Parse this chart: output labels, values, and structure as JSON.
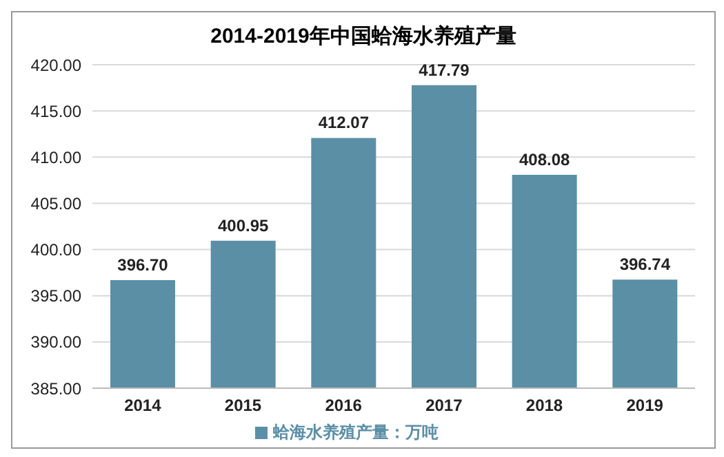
{
  "chart_data": {
    "type": "bar",
    "title": "2014-2019年中国蛤海水养殖产量",
    "categories": [
      "2014",
      "2015",
      "2016",
      "2017",
      "2018",
      "2019"
    ],
    "series": [
      {
        "name": "蛤海水养殖产量：万吨",
        "color": "#5b8fa6",
        "values": [
          396.7,
          400.95,
          412.07,
          417.79,
          408.08,
          396.74
        ],
        "value_labels": [
          "396.70",
          "400.95",
          "412.07",
          "417.79",
          "408.08",
          "396.74"
        ]
      }
    ],
    "ylim": [
      385,
      420
    ],
    "yticks": [
      {
        "value": 385,
        "label": "385.00"
      },
      {
        "value": 390,
        "label": "390.00"
      },
      {
        "value": 395,
        "label": "395.00"
      },
      {
        "value": 400,
        "label": "400.00"
      },
      {
        "value": 405,
        "label": "405.00"
      },
      {
        "value": 410,
        "label": "410.00"
      },
      {
        "value": 415,
        "label": "415.00"
      },
      {
        "value": 420,
        "label": "420.00"
      }
    ],
    "grid": "y",
    "legend": "bottom"
  }
}
